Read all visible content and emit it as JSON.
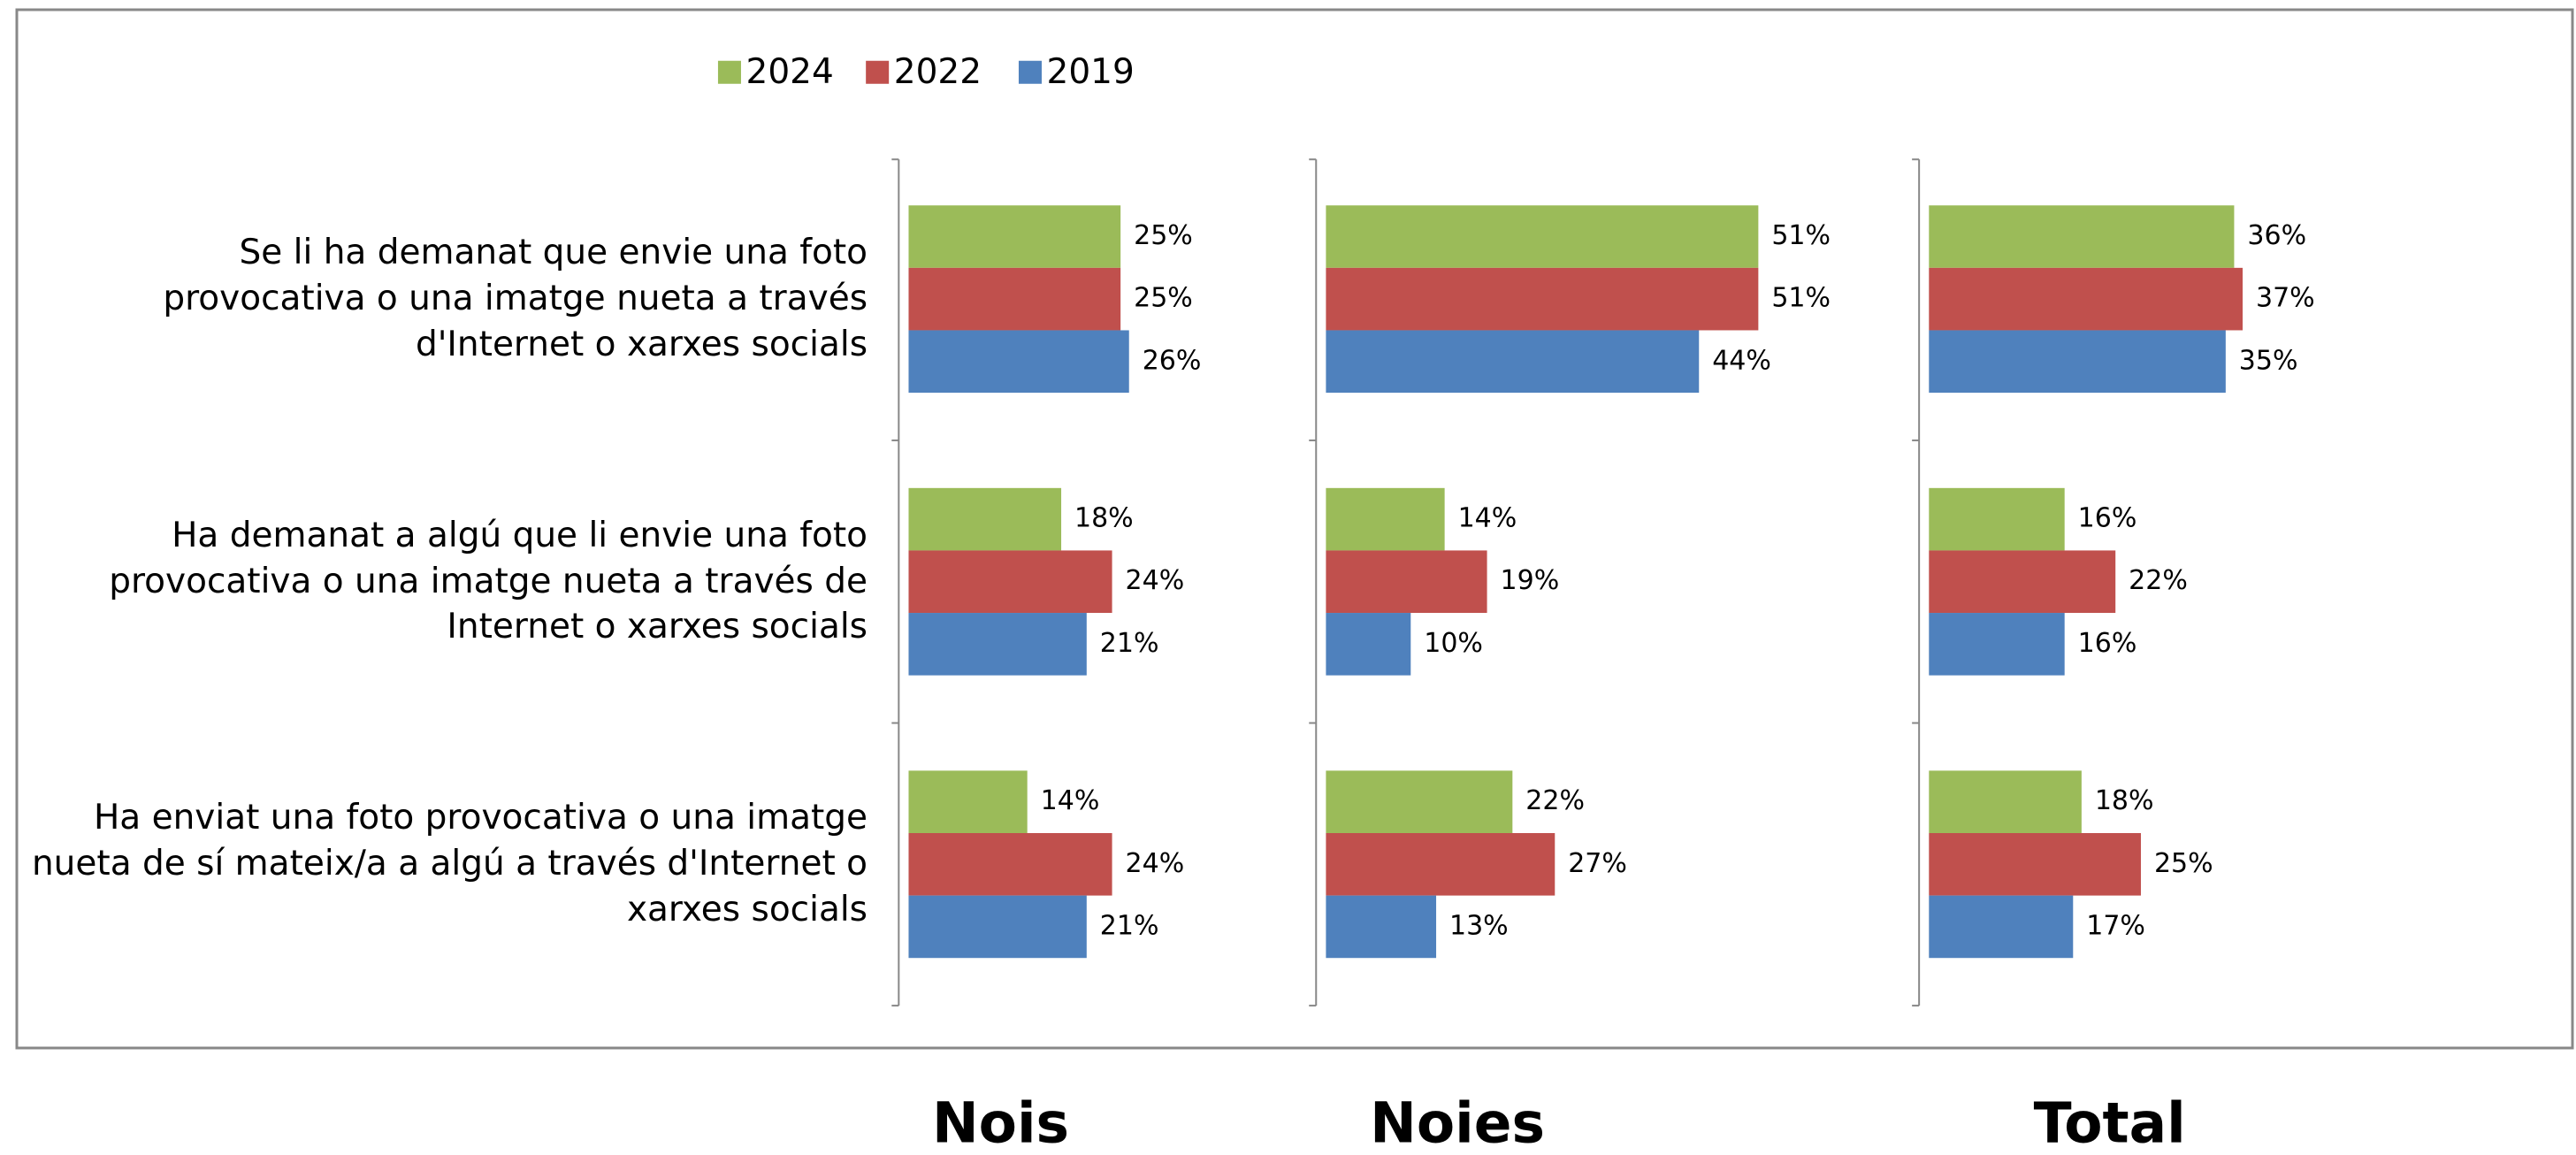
{
  "chart_data": {
    "type": "bar",
    "orientation": "horizontal",
    "categories": [
      "Se li ha demanat que envie una foto provocativa o una imatge nueta a través d'Internet o xarxes socials",
      "Ha demanat a algú que li envie una foto provocativa o una imatge nueta a través de Internet o xarxes socials",
      "Ha enviat una foto provocativa o una imatge nueta de sí mateix/a a algú a través d'Internet o xarxes socials"
    ],
    "series": [
      {
        "name": "2024",
        "color": "#9bbb59"
      },
      {
        "name": "2022",
        "color": "#c0504d"
      },
      {
        "name": "2019",
        "color": "#4f81bd"
      }
    ],
    "legend": "top",
    "panels": [
      {
        "title": "Nois",
        "series": [
          {
            "values": [
              25,
              18,
              14
            ],
            "value_labels": [
              "25%",
              "18%",
              "14%"
            ]
          },
          {
            "values": [
              25,
              24,
              24
            ],
            "value_labels": [
              "25%",
              "24%",
              "24%"
            ]
          },
          {
            "values": [
              26,
              21,
              21
            ],
            "value_labels": [
              "26%",
              "21%",
              "21%"
            ]
          }
        ]
      },
      {
        "title": "Noies",
        "series": [
          {
            "values": [
              51,
              14,
              22
            ],
            "value_labels": [
              "51%",
              "14%",
              "22%"
            ]
          },
          {
            "values": [
              51,
              19,
              27
            ],
            "value_labels": [
              "51%",
              "19%",
              "27%"
            ]
          },
          {
            "values": [
              44,
              10,
              13
            ],
            "value_labels": [
              "44%",
              "10%",
              "13%"
            ]
          }
        ]
      },
      {
        "title": "Total",
        "series": [
          {
            "values": [
              36,
              16,
              18
            ],
            "value_labels": [
              "36%",
              "16%",
              "18%"
            ]
          },
          {
            "values": [
              37,
              22,
              25
            ],
            "value_labels": [
              "37%",
              "22%",
              "25%"
            ]
          },
          {
            "values": [
              35,
              16,
              17
            ],
            "value_labels": [
              "35%",
              "16%",
              "17%"
            ]
          }
        ]
      }
    ]
  }
}
